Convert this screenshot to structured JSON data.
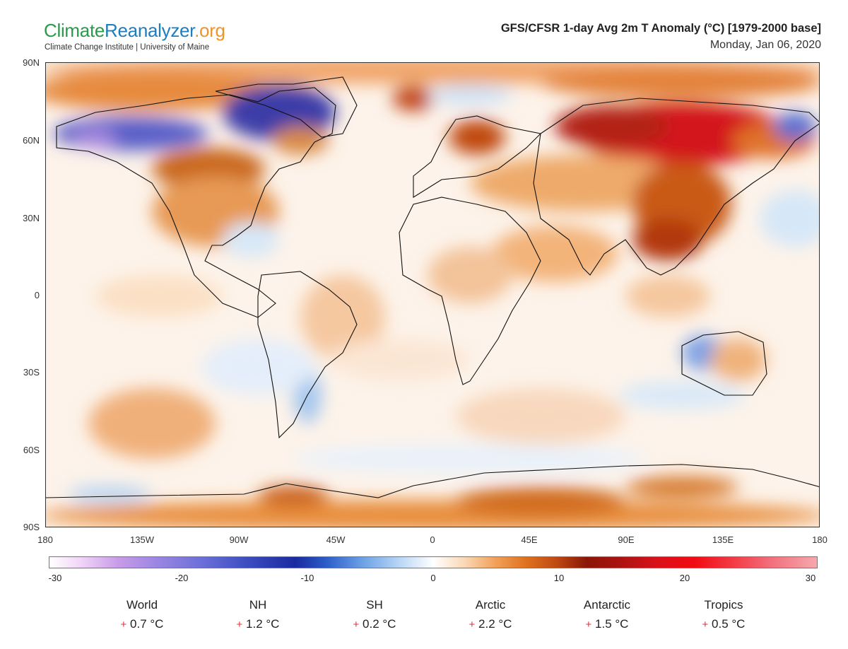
{
  "header": {
    "logo_part1": "Climate",
    "logo_part2": "Reanalyzer",
    "logo_part3": ".org",
    "subtitle": "Climate Change Institute | University of Maine",
    "title": "GFS/CFSR 1-day Avg 2m T Anomaly (°C) [1979-2000 base]",
    "date": "Monday, Jan 06, 2020"
  },
  "axes": {
    "lat_labels": [
      "90N",
      "60N",
      "30N",
      "0",
      "30S",
      "60S",
      "90S"
    ],
    "lon_labels": [
      "180",
      "135W",
      "90W",
      "45W",
      "0",
      "45E",
      "90E",
      "135E",
      "180"
    ]
  },
  "colorbar": {
    "ticks": [
      "-30",
      "-20",
      "-10",
      "0",
      "10",
      "20",
      "30"
    ],
    "min": -30,
    "max": 30
  },
  "stats": [
    {
      "name": "World",
      "sign": "+",
      "value": "0.7 °C"
    },
    {
      "name": "NH",
      "sign": "+",
      "value": "1.2 °C"
    },
    {
      "name": "SH",
      "sign": "+",
      "value": "0.2 °C"
    },
    {
      "name": "Arctic",
      "sign": "+",
      "value": "2.2 °C"
    },
    {
      "name": "Antarctic",
      "sign": "+",
      "value": "1.5 °C"
    },
    {
      "name": "Tropics",
      "sign": "+",
      "value": "0.5 °C"
    }
  ],
  "colors": {
    "logo_green": "#2a9a4a",
    "logo_blue": "#1f7dbf",
    "logo_orange": "#f0932b",
    "warm_anomaly": "#e0721d",
    "strong_warm": "#d8121a",
    "cold_anomaly": "#3a4cbf",
    "plus_sign": "#e0303a"
  }
}
